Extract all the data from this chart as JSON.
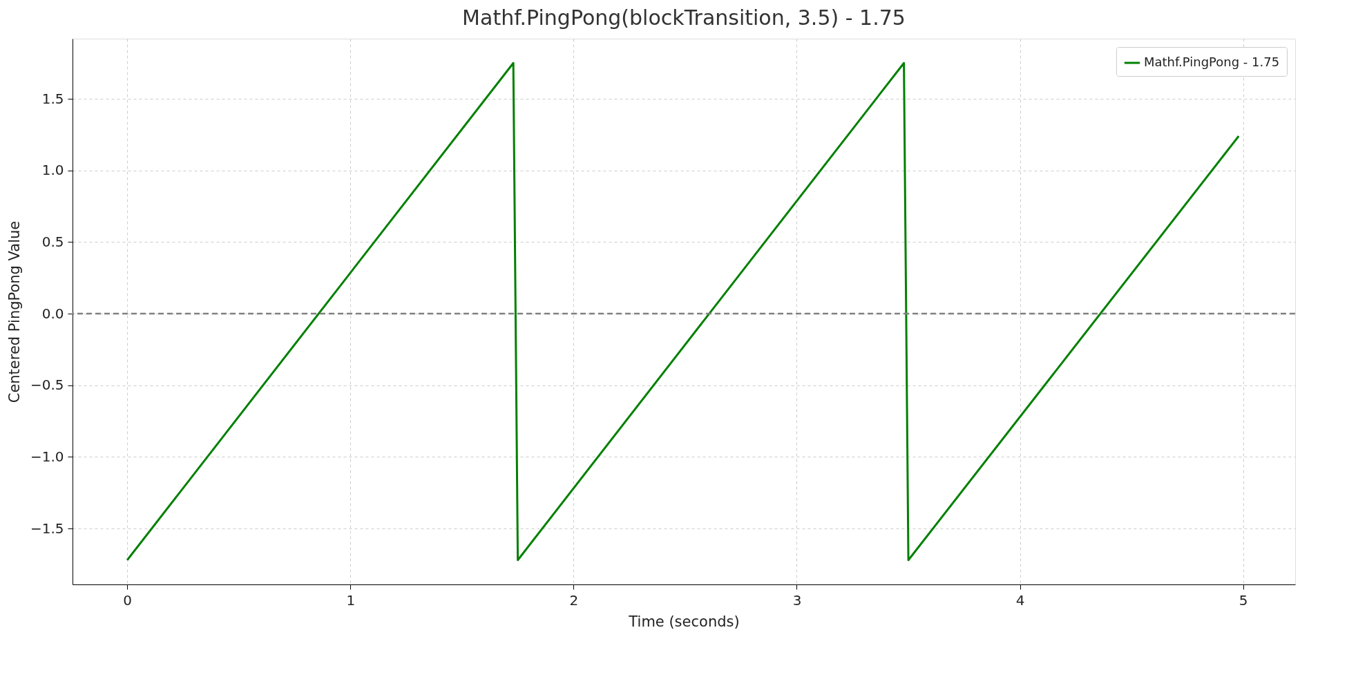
{
  "chart_data": {
    "type": "line",
    "title": "Mathf.PingPong(blockTransition, 3.5) - 1.75",
    "xlabel": "Time (seconds)",
    "ylabel": "Centered PingPong Value",
    "x": [
      0,
      1.73,
      1.75,
      3.48,
      3.5,
      4.98
    ],
    "series": [
      {
        "name": "Mathf.PingPong - 1.75",
        "color": "#008000",
        "values": [
          -1.72,
          1.75,
          -1.72,
          1.75,
          -1.72,
          1.24
        ]
      }
    ],
    "xlim": [
      -0.245,
      5.233
    ],
    "ylim": [
      -1.89,
      1.92
    ],
    "xticks": [
      0,
      1,
      2,
      3,
      4,
      5
    ],
    "yticks": [
      {
        "value": -1.5,
        "label": "−1.5"
      },
      {
        "value": -1.0,
        "label": "−1.0"
      },
      {
        "value": -0.5,
        "label": "−0.5"
      },
      {
        "value": 0,
        "label": "0.0"
      },
      {
        "value": 0.5,
        "label": "0.5"
      },
      {
        "value": 1.0,
        "label": "1.0"
      },
      {
        "value": 1.5,
        "label": "1.5"
      }
    ],
    "ref_lines": [
      {
        "axis": "y",
        "value": 0,
        "color": "#808080",
        "line_style": "dashed"
      }
    ],
    "grid": true,
    "legend": "top right",
    "line_style": "solid",
    "marker": "none"
  }
}
